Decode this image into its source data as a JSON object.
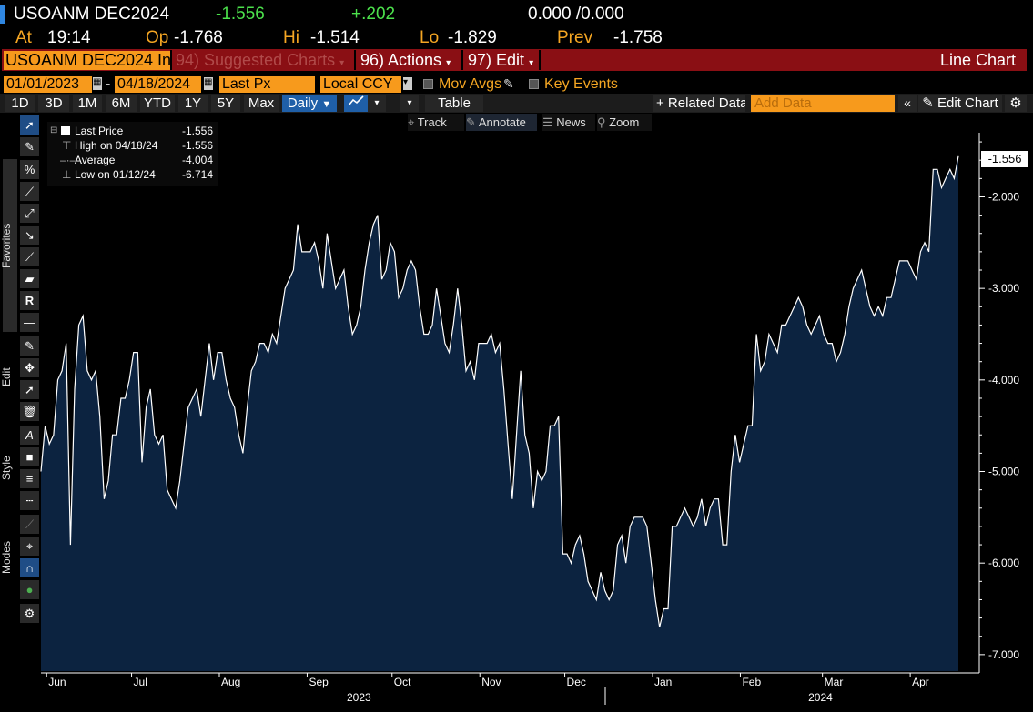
{
  "header": {
    "ticker": "USOANM DEC2024",
    "last": "-1.556",
    "change": "+.202",
    "bidask": "0.000 /0.000",
    "at_label": "At",
    "at_time": "19:14",
    "op_label": "Op",
    "op_value": "-1.768",
    "hi_label": "Hi",
    "hi_value": "-1.514",
    "lo_label": "Lo",
    "lo_value": "-1.829",
    "prev_label": "Prev",
    "prev_value": "-1.758"
  },
  "menubar": {
    "ticker_field": "USOANM DEC2024 In",
    "suggested": "94) Suggested Charts",
    "actions": "96) Actions",
    "edit": "97) Edit",
    "chart_type": "Line Chart"
  },
  "controls": {
    "start_date": "01/01/2023",
    "end_date": "04/18/2024",
    "field": "Last Px",
    "currency": "Local CCY",
    "mov_avgs": "Mov Avgs",
    "key_events": "Key Events"
  },
  "toolbar": {
    "ranges": [
      "1D",
      "3D",
      "1M",
      "6M",
      "YTD",
      "1Y",
      "5Y",
      "Max"
    ],
    "period": "Daily",
    "table": "Table",
    "related": "+ Related Data",
    "add_data_placeholder": "Add Data",
    "edit_chart": "Edit Chart"
  },
  "trackbar": {
    "track": "Track",
    "annotate": "Annotate",
    "news": "News",
    "zoom": "Zoom"
  },
  "sidebar": {
    "favorites": "Favorites",
    "edit": "Edit",
    "style": "Style",
    "modes": "Modes"
  },
  "legend": {
    "last_label": "Last Price",
    "last_value": "-1.556",
    "high_label": "High on 04/18/24",
    "high_value": "-1.556",
    "avg_label": "Average",
    "avg_value": "-4.004",
    "low_label": "Low on 01/12/24",
    "low_value": "-6.714"
  },
  "colors": {
    "fill": "#0c2340",
    "line": "#ffffff",
    "accent": "#f79a1c",
    "menubar": "#8a0f14"
  },
  "chart_data": {
    "type": "area",
    "ylim": [
      -7.2,
      -1.3
    ],
    "y_ticks": [
      -2,
      -3,
      -4,
      -5,
      -6,
      -7
    ],
    "y_tick_labels": [
      "-2.000",
      "-3.000",
      "-4.000",
      "-5.000",
      "-6.000",
      "-7.000"
    ],
    "x_month_labels": [
      "Jun",
      "Jul",
      "Aug",
      "Sep",
      "Oct",
      "Nov",
      "Dec",
      "Jan",
      "Feb",
      "Mar",
      "Apr"
    ],
    "x_year_labels": [
      "2023",
      "2024"
    ],
    "last_value_label": "-1.556",
    "series": [
      {
        "x_start": "2023-05-30",
        "x_end": "2024-04-18",
        "values": [
          -5.0,
          -4.5,
          -4.7,
          -4.6,
          -4.0,
          -3.9,
          -3.6,
          -5.8,
          -4.1,
          -3.4,
          -3.3,
          -3.9,
          -4.0,
          -3.9,
          -4.4,
          -5.3,
          -5.1,
          -4.6,
          -4.6,
          -4.2,
          -4.2,
          -4.0,
          -3.7,
          -3.7,
          -4.9,
          -4.3,
          -4.1,
          -4.6,
          -4.7,
          -4.6,
          -5.2,
          -5.3,
          -5.4,
          -5.1,
          -4.7,
          -4.3,
          -4.2,
          -4.1,
          -4.4,
          -4.0,
          -3.6,
          -4.0,
          -3.7,
          -3.7,
          -4.0,
          -4.2,
          -4.3,
          -4.6,
          -4.8,
          -4.3,
          -3.9,
          -3.8,
          -3.6,
          -3.6,
          -3.7,
          -3.5,
          -3.6,
          -3.3,
          -3.0,
          -2.9,
          -2.8,
          -2.3,
          -2.6,
          -2.6,
          -2.6,
          -2.5,
          -2.7,
          -3.0,
          -2.4,
          -2.7,
          -3.0,
          -2.9,
          -2.8,
          -3.2,
          -3.5,
          -3.4,
          -3.2,
          -2.8,
          -2.5,
          -2.3,
          -2.2,
          -2.9,
          -2.8,
          -2.5,
          -2.6,
          -3.1,
          -3.0,
          -2.8,
          -2.7,
          -2.8,
          -3.2,
          -3.5,
          -3.5,
          -3.4,
          -3.0,
          -3.3,
          -3.6,
          -3.7,
          -3.4,
          -3.0,
          -3.4,
          -3.9,
          -3.8,
          -4.0,
          -3.6,
          -3.6,
          -3.6,
          -3.5,
          -3.7,
          -3.6,
          -4.1,
          -4.7,
          -5.3,
          -4.6,
          -3.9,
          -4.6,
          -4.8,
          -5.4,
          -5.0,
          -5.1,
          -5.0,
          -4.5,
          -4.5,
          -4.4,
          -5.9,
          -5.9,
          -6.0,
          -5.8,
          -5.7,
          -5.9,
          -6.2,
          -6.3,
          -6.4,
          -6.1,
          -6.3,
          -6.4,
          -6.3,
          -5.8,
          -5.7,
          -6.0,
          -5.6,
          -5.5,
          -5.5,
          -5.5,
          -5.6,
          -6.0,
          -6.4,
          -6.7,
          -6.5,
          -6.5,
          -5.6,
          -5.6,
          -5.5,
          -5.4,
          -5.5,
          -5.6,
          -5.5,
          -5.3,
          -5.6,
          -5.4,
          -5.3,
          -5.3,
          -5.8,
          -5.8,
          -5.0,
          -4.6,
          -4.9,
          -4.7,
          -4.5,
          -4.5,
          -3.5,
          -3.9,
          -3.8,
          -3.5,
          -3.6,
          -3.7,
          -3.4,
          -3.4,
          -3.3,
          -3.2,
          -3.1,
          -3.2,
          -3.4,
          -3.5,
          -3.4,
          -3.3,
          -3.5,
          -3.6,
          -3.6,
          -3.8,
          -3.7,
          -3.5,
          -3.2,
          -3.0,
          -2.9,
          -2.8,
          -3.0,
          -3.2,
          -3.3,
          -3.2,
          -3.3,
          -3.1,
          -3.1,
          -2.9,
          -2.7,
          -2.7,
          -2.7,
          -2.8,
          -2.9,
          -2.6,
          -2.5,
          -2.6,
          -1.7,
          -1.7,
          -1.9,
          -1.8,
          -1.7,
          -1.8,
          -1.556
        ]
      }
    ]
  }
}
